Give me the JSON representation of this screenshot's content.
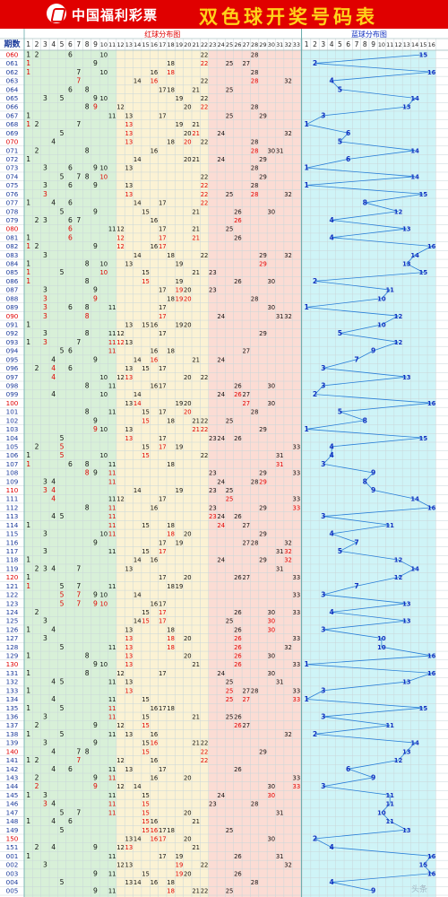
{
  "header": {
    "logo_text": "中国福利彩票",
    "title": "双色球开奖号码表"
  },
  "columns": {
    "period_label": "期数",
    "red_zone_label": "红球分布图",
    "blue_zone_label": "蓝球分布图"
  },
  "colors": {
    "header_bg": "#e00000",
    "title_yellow": "#ffd21a",
    "zone1_bg": "#d8f0d8",
    "zone2_bg": "#fbf2d4",
    "zone3_bg": "#fbdcd4",
    "blue_bg": "#cff4f7",
    "red_text": "#e00000",
    "black_text": "#111111",
    "blue_text": "#1030c0",
    "blue_line": "#2a7fd8",
    "period_text": "#1a3a9a"
  },
  "watermark": "头条",
  "chart_data": {
    "type": "table",
    "title": "双色球开奖号码表",
    "red_columns": [
      1,
      2,
      3,
      4,
      5,
      6,
      7,
      8,
      9,
      10,
      11,
      12,
      13,
      14,
      15,
      16,
      17,
      18,
      19,
      20,
      21,
      22,
      23,
      24,
      25,
      26,
      27,
      28,
      29,
      30,
      31,
      32,
      33
    ],
    "blue_columns": [
      1,
      2,
      3,
      4,
      5,
      6,
      7,
      8,
      9,
      10,
      11,
      12,
      13,
      14,
      15,
      16
    ],
    "draws": [
      {
        "period": "060",
        "red": [
          1,
          2,
          6,
          10,
          22,
          28
        ],
        "blue": 15
      },
      {
        "period": "061",
        "red": [
          1,
          9,
          18,
          22,
          25,
          27
        ],
        "blue": 2
      },
      {
        "period": "062",
        "red": [
          1,
          7,
          10,
          16,
          18,
          28
        ],
        "blue": 16
      },
      {
        "period": "063",
        "red": [
          7,
          14,
          16,
          22,
          28,
          32
        ],
        "blue": 4
      },
      {
        "period": "064",
        "red": [
          6,
          8,
          17,
          18,
          21,
          25
        ],
        "blue": 5
      },
      {
        "period": "065",
        "red": [
          3,
          5,
          9,
          10,
          19,
          22
        ],
        "blue": 14
      },
      {
        "period": "066",
        "red": [
          8,
          9,
          12,
          20,
          22,
          28
        ],
        "blue": 13
      },
      {
        "period": "067",
        "red": [
          1,
          11,
          13,
          17,
          25,
          29
        ],
        "blue": 3
      },
      {
        "period": "068",
        "red": [
          1,
          2,
          7,
          13,
          19,
          21
        ],
        "blue": 1
      },
      {
        "period": "069",
        "red": [
          5,
          13,
          20,
          21,
          24,
          32
        ],
        "blue": 6
      },
      {
        "period": "070",
        "red": [
          4,
          13,
          18,
          20,
          22,
          28
        ],
        "blue": 5
      },
      {
        "period": "071",
        "red": [
          2,
          8,
          16,
          28,
          30,
          31
        ],
        "blue": 14
      },
      {
        "period": "072",
        "red": [
          1,
          14,
          20,
          21,
          24,
          29
        ],
        "blue": 6
      },
      {
        "period": "073",
        "red": [
          3,
          6,
          9,
          10,
          13,
          28
        ],
        "blue": 1
      },
      {
        "period": "074",
        "red": [
          5,
          7,
          8,
          10,
          22,
          29
        ],
        "blue": 14
      },
      {
        "period": "075",
        "red": [
          3,
          6,
          9,
          13,
          22,
          28
        ],
        "blue": 1
      },
      {
        "period": "076",
        "red": [
          3,
          13,
          22,
          25,
          28,
          32
        ],
        "blue": 15
      },
      {
        "period": "077",
        "red": [
          1,
          4,
          6,
          14,
          17,
          22
        ],
        "blue": 8
      },
      {
        "period": "078",
        "red": [
          5,
          9,
          15,
          21,
          26,
          30
        ],
        "blue": 12
      },
      {
        "period": "079",
        "red": [
          2,
          3,
          6,
          7,
          16,
          26
        ],
        "blue": 4
      },
      {
        "period": "080",
        "red": [
          6,
          11,
          12,
          17,
          21,
          25
        ],
        "blue": 13
      },
      {
        "period": "081",
        "red": [
          1,
          6,
          12,
          17,
          21,
          26
        ],
        "blue": 4
      },
      {
        "period": "082",
        "red": [
          1,
          2,
          9,
          12,
          16,
          17
        ],
        "blue": 16
      },
      {
        "period": "083",
        "red": [
          3,
          14,
          18,
          22,
          29,
          32
        ],
        "blue": 14
      },
      {
        "period": "084",
        "red": [
          1,
          8,
          10,
          13,
          19,
          29
        ],
        "blue": 13
      },
      {
        "period": "085",
        "red": [
          1,
          5,
          10,
          15,
          21,
          23
        ],
        "blue": 15
      },
      {
        "period": "086",
        "red": [
          1,
          8,
          15,
          19,
          26,
          30
        ],
        "blue": 2
      },
      {
        "period": "087",
        "red": [
          3,
          9,
          17,
          19,
          20,
          23
        ],
        "blue": 11
      },
      {
        "period": "088",
        "red": [
          3,
          9,
          18,
          19,
          20,
          28
        ],
        "blue": 10
      },
      {
        "period": "089",
        "red": [
          3,
          6,
          8,
          11,
          17,
          30
        ],
        "blue": 1
      },
      {
        "period": "090",
        "red": [
          3,
          8,
          17,
          24,
          31,
          32
        ],
        "blue": 12
      },
      {
        "period": "091",
        "red": [
          1,
          13,
          15,
          16,
          19,
          20
        ],
        "blue": 10
      },
      {
        "period": "092",
        "red": [
          3,
          8,
          11,
          12,
          17,
          29
        ],
        "blue": 5
      },
      {
        "period": "093",
        "red": [
          1,
          3,
          7,
          11,
          12,
          13
        ],
        "blue": 12
      },
      {
        "period": "094",
        "red": [
          5,
          6,
          11,
          16,
          18,
          27
        ],
        "blue": 9
      },
      {
        "period": "095",
        "red": [
          4,
          9,
          14,
          16,
          21,
          24
        ],
        "blue": 7
      },
      {
        "period": "096",
        "red": [
          2,
          4,
          6,
          13,
          15,
          17
        ],
        "blue": 3
      },
      {
        "period": "097",
        "red": [
          4,
          10,
          12,
          13,
          20,
          22
        ],
        "blue": 13
      },
      {
        "period": "098",
        "red": [
          8,
          11,
          16,
          17,
          26,
          30
        ],
        "blue": 3
      },
      {
        "period": "099",
        "red": [
          4,
          10,
          14,
          24,
          26,
          27
        ],
        "blue": 2
      },
      {
        "period": "100",
        "red": [
          13,
          14,
          19,
          20,
          27,
          30
        ],
        "blue": 16
      },
      {
        "period": "101",
        "red": [
          8,
          11,
          15,
          17,
          20,
          28
        ],
        "blue": 5
      },
      {
        "period": "102",
        "red": [
          9,
          15,
          18,
          21,
          22,
          25
        ],
        "blue": 8
      },
      {
        "period": "103",
        "red": [
          9,
          10,
          13,
          21,
          22,
          29
        ],
        "blue": 1
      },
      {
        "period": "104",
        "red": [
          5,
          13,
          17,
          23,
          24,
          26
        ],
        "blue": 15
      },
      {
        "period": "105",
        "red": [
          2,
          5,
          15,
          17,
          19,
          33
        ],
        "blue": 4
      },
      {
        "period": "106",
        "red": [
          1,
          5,
          10,
          15,
          22,
          31
        ],
        "blue": 4
      },
      {
        "period": "107",
        "red": [
          1,
          6,
          8,
          11,
          18,
          31
        ],
        "blue": 3
      },
      {
        "period": "108",
        "red": [
          8,
          9,
          11,
          23,
          29,
          33
        ],
        "blue": 9
      },
      {
        "period": "109",
        "red": [
          3,
          4,
          11,
          24,
          28,
          29
        ],
        "blue": 8
      },
      {
        "period": "110",
        "red": [
          3,
          4,
          14,
          19,
          23,
          25
        ],
        "blue": 9
      },
      {
        "period": "111",
        "red": [
          4,
          11,
          12,
          17,
          25,
          33
        ],
        "blue": 14
      },
      {
        "period": "112",
        "red": [
          8,
          11,
          16,
          23,
          29,
          33
        ],
        "blue": 16
      },
      {
        "period": "113",
        "red": [
          4,
          5,
          11,
          23,
          24,
          26
        ],
        "blue": 3
      },
      {
        "period": "114",
        "red": [
          1,
          11,
          15,
          18,
          24,
          27
        ],
        "blue": 11
      },
      {
        "period": "115",
        "red": [
          3,
          10,
          11,
          18,
          20,
          29
        ],
        "blue": 4
      },
      {
        "period": "116",
        "red": [
          9,
          17,
          19,
          27,
          28,
          32
        ],
        "blue": 7
      },
      {
        "period": "117",
        "red": [
          3,
          11,
          15,
          17,
          31,
          32
        ],
        "blue": 5
      },
      {
        "period": "118",
        "red": [
          1,
          14,
          16,
          24,
          29,
          32
        ],
        "blue": 12
      },
      {
        "period": "119",
        "red": [
          2,
          3,
          4,
          7,
          13,
          31
        ],
        "blue": 14
      },
      {
        "period": "120",
        "red": [
          1,
          17,
          20,
          26,
          27,
          33
        ],
        "blue": 12
      },
      {
        "period": "121",
        "red": [
          1,
          5,
          7,
          11,
          18,
          19
        ],
        "blue": 7
      },
      {
        "period": "122",
        "red": [
          5,
          7,
          9,
          10,
          14,
          33
        ],
        "blue": 3
      },
      {
        "period": "123",
        "red": [
          5,
          7,
          9,
          10,
          16,
          17
        ],
        "blue": 13
      },
      {
        "period": "124",
        "red": [
          2,
          15,
          17,
          26,
          30,
          33
        ],
        "blue": 4
      },
      {
        "period": "125",
        "red": [
          3,
          14,
          15,
          17,
          25,
          30
        ],
        "blue": 13
      },
      {
        "period": "126",
        "red": [
          1,
          4,
          13,
          18,
          26,
          30
        ],
        "blue": 3
      },
      {
        "period": "127",
        "red": [
          3,
          13,
          18,
          20,
          26,
          33
        ],
        "blue": 10
      },
      {
        "period": "128",
        "red": [
          5,
          11,
          13,
          18,
          26,
          32
        ],
        "blue": 10
      },
      {
        "period": "129",
        "red": [
          1,
          8,
          13,
          20,
          26,
          30
        ],
        "blue": 16
      },
      {
        "period": "130",
        "red": [
          9,
          10,
          13,
          21,
          26,
          33
        ],
        "blue": 1
      },
      {
        "period": "131",
        "red": [
          1,
          8,
          12,
          17,
          24,
          30
        ],
        "blue": 16
      },
      {
        "period": "132",
        "red": [
          4,
          5,
          11,
          13,
          25,
          31
        ],
        "blue": 13
      },
      {
        "period": "133",
        "red": [
          1,
          13,
          25,
          27,
          28,
          33
        ],
        "blue": 3
      },
      {
        "period": "134",
        "red": [
          4,
          11,
          15,
          25,
          27,
          33
        ],
        "blue": 1
      },
      {
        "period": "135",
        "red": [
          1,
          5,
          11,
          16,
          17,
          18
        ],
        "blue": 15
      },
      {
        "period": "136",
        "red": [
          3,
          11,
          15,
          21,
          25,
          26
        ],
        "blue": 3
      },
      {
        "period": "137",
        "red": [
          2,
          9,
          12,
          15,
          26,
          27
        ],
        "blue": 11
      },
      {
        "period": "138",
        "red": [
          1,
          5,
          11,
          13,
          16,
          32
        ],
        "blue": 2
      },
      {
        "period": "139",
        "red": [
          3,
          9,
          15,
          16,
          21,
          22
        ],
        "blue": 14
      },
      {
        "period": "140",
        "red": [
          4,
          7,
          8,
          15,
          22,
          29
        ],
        "blue": 13
      },
      {
        "period": "141",
        "red": [
          1,
          2,
          7,
          12,
          16,
          22
        ],
        "blue": 12
      },
      {
        "period": "142",
        "red": [
          4,
          6,
          11,
          13,
          17,
          26
        ],
        "blue": 6
      },
      {
        "period": "143",
        "red": [
          2,
          9,
          11,
          16,
          20,
          33
        ],
        "blue": 9
      },
      {
        "period": "144",
        "red": [
          2,
          9,
          12,
          14,
          30,
          33
        ],
        "blue": 3
      },
      {
        "period": "145",
        "red": [
          1,
          3,
          11,
          15,
          24,
          30
        ],
        "blue": 11
      },
      {
        "period": "146",
        "red": [
          3,
          4,
          11,
          15,
          23,
          28
        ],
        "blue": 11
      },
      {
        "period": "147",
        "red": [
          5,
          7,
          11,
          15,
          20,
          31
        ],
        "blue": 10
      },
      {
        "period": "148",
        "red": [
          1,
          4,
          6,
          15,
          16,
          21
        ],
        "blue": 11
      },
      {
        "period": "149",
        "red": [
          5,
          15,
          16,
          17,
          18,
          25
        ],
        "blue": 13
      },
      {
        "period": "150",
        "red": [
          13,
          14,
          16,
          17,
          20,
          30
        ],
        "blue": 2
      },
      {
        "period": "151",
        "red": [
          2,
          4,
          9,
          12,
          13,
          21
        ],
        "blue": 4
      },
      {
        "period": "001",
        "red": [
          1,
          11,
          17,
          19,
          26,
          31
        ],
        "blue": 16
      },
      {
        "period": "002",
        "red": [
          3,
          12,
          13,
          19,
          22,
          32
        ],
        "blue": 15
      },
      {
        "period": "003",
        "red": [
          9,
          11,
          15,
          19,
          20,
          26
        ],
        "blue": 16
      },
      {
        "period": "004",
        "red": [
          5,
          13,
          14,
          16,
          18,
          28
        ],
        "blue": 4
      },
      {
        "period": "005",
        "red": [
          9,
          11,
          18,
          21,
          22,
          25
        ],
        "blue": 9
      }
    ]
  }
}
